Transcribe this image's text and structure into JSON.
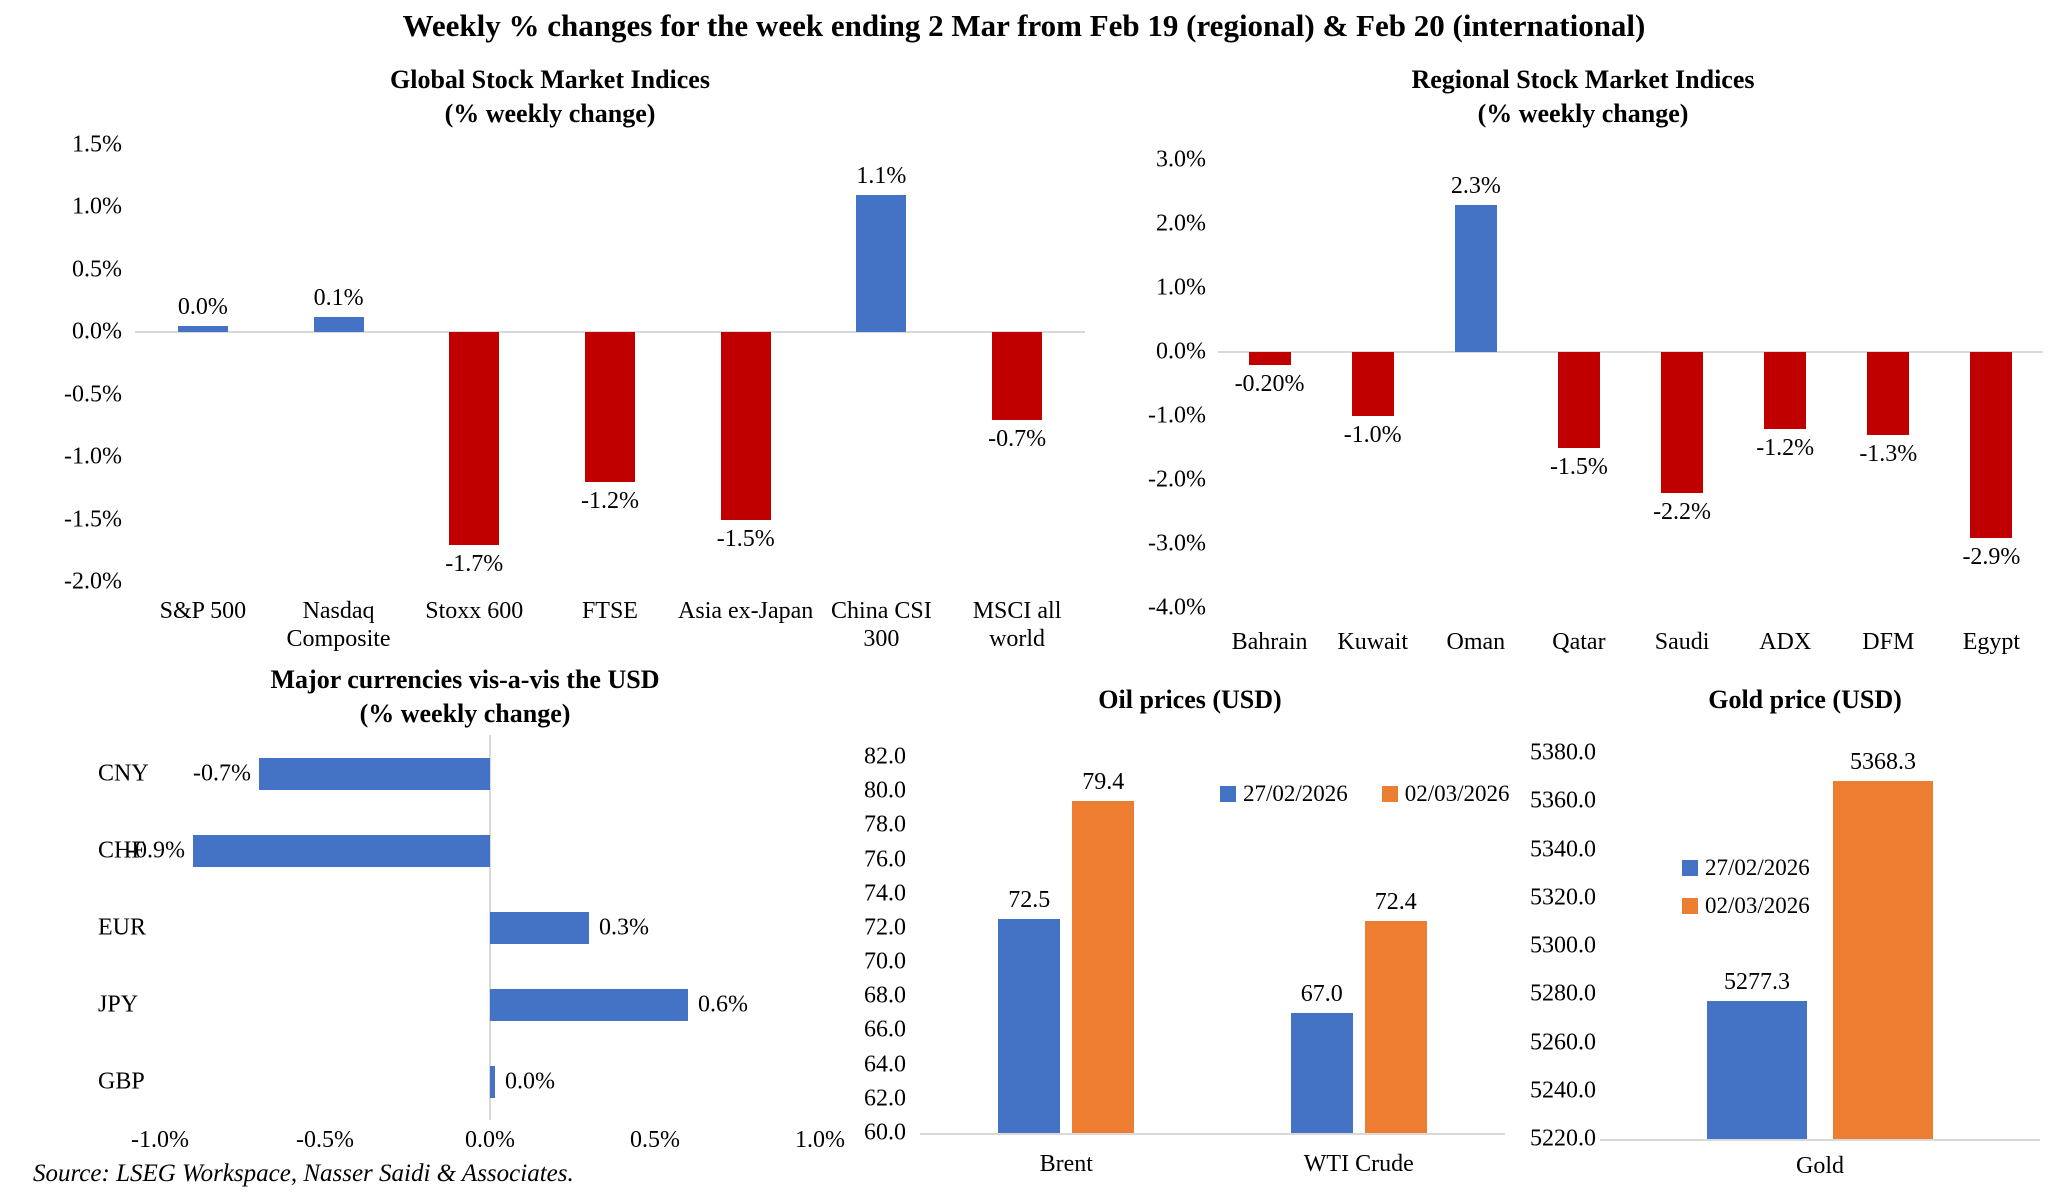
{
  "page": {
    "title": "Weekly % changes for the week ending 2 Mar from Feb 19 (regional) & Feb 20 (international)",
    "source": "Source: LSEG Workspace, Nasser Saidi & Associates."
  },
  "colors": {
    "blue": "#4472C4",
    "red": "#C00000",
    "orange": "#ED7D31",
    "axis_line": "#D9D9D9"
  },
  "chart_data": [
    {
      "id": "global",
      "type": "bar",
      "title": [
        "Global Stock Market Indices",
        "(% weekly change)"
      ],
      "axis": {
        "ymin": -2.0,
        "ymax": 1.5,
        "yticks": [
          "1.5%",
          "1.0%",
          "0.5%",
          "0.0%",
          "-0.5%",
          "-1.0%",
          "-1.5%",
          "-2.0%"
        ]
      },
      "grid": false,
      "points": [
        {
          "category": "S&P 500",
          "value": 0.05,
          "label": "0.0%",
          "color": "blue"
        },
        {
          "category": "Nasdaq Composite",
          "value": 0.12,
          "label": "0.1%",
          "color": "blue"
        },
        {
          "category": "Stoxx 600",
          "value": -1.7,
          "label": "-1.7%",
          "color": "red"
        },
        {
          "category": "FTSE",
          "value": -1.2,
          "label": "-1.2%",
          "color": "red"
        },
        {
          "category": "Asia ex-Japan",
          "value": -1.5,
          "label": "-1.5%",
          "color": "red"
        },
        {
          "category": "China CSI 300",
          "value": 1.1,
          "label": "1.1%",
          "color": "blue"
        },
        {
          "category": "MSCI all world",
          "value": -0.7,
          "label": "-0.7%",
          "color": "red"
        }
      ]
    },
    {
      "id": "regional",
      "type": "bar",
      "title": [
        "Regional Stock Market Indices",
        "(% weekly change)"
      ],
      "axis": {
        "ymin": -4.0,
        "ymax": 3.0,
        "yticks": [
          "3.0%",
          "2.0%",
          "1.0%",
          "0.0%",
          "-1.0%",
          "-2.0%",
          "-3.0%",
          "-4.0%"
        ]
      },
      "grid": false,
      "points": [
        {
          "category": "Bahrain",
          "value": -0.2,
          "label": "-0.20%",
          "color": "red"
        },
        {
          "category": "Kuwait",
          "value": -1.0,
          "label": "-1.0%",
          "color": "red"
        },
        {
          "category": "Oman",
          "value": 2.3,
          "label": "2.3%",
          "color": "blue"
        },
        {
          "category": "Qatar",
          "value": -1.5,
          "label": "-1.5%",
          "color": "red"
        },
        {
          "category": "Saudi",
          "value": -2.2,
          "label": "-2.2%",
          "color": "red"
        },
        {
          "category": "ADX",
          "value": -1.2,
          "label": "-1.2%",
          "color": "red"
        },
        {
          "category": "DFM",
          "value": -1.3,
          "label": "-1.3%",
          "color": "red"
        },
        {
          "category": "Egypt",
          "value": -2.9,
          "label": "-2.9%",
          "color": "red"
        }
      ]
    },
    {
      "id": "currencies",
      "type": "bar",
      "orientation": "horizontal",
      "title": [
        "Major currencies vis-a-vis the USD",
        "(% weekly change)"
      ],
      "axis": {
        "xmin": -1.0,
        "xmax": 1.0,
        "xticks": [
          "-1.0%",
          "-0.5%",
          "0.0%",
          "0.5%",
          "1.0%"
        ]
      },
      "grid": false,
      "points": [
        {
          "category": "CNY",
          "value": -0.7,
          "label": "-0.7%",
          "color": "blue"
        },
        {
          "category": "CHF",
          "value": -0.9,
          "label": "-0.9%",
          "color": "blue"
        },
        {
          "category": "EUR",
          "value": 0.3,
          "label": "0.3%",
          "color": "blue"
        },
        {
          "category": "JPY",
          "value": 0.6,
          "label": "0.6%",
          "color": "blue"
        },
        {
          "category": "GBP",
          "value": 0.015,
          "label": "0.0%",
          "color": "blue"
        }
      ]
    },
    {
      "id": "oil",
      "type": "bar",
      "grouped": true,
      "title": [
        "Oil prices (USD)"
      ],
      "axis": {
        "ymin": 60.0,
        "ymax": 82.0,
        "yticks": [
          "82.0",
          "80.0",
          "78.0",
          "76.0",
          "74.0",
          "72.0",
          "70.0",
          "68.0",
          "66.0",
          "64.0",
          "62.0",
          "60.0"
        ]
      },
      "grid": false,
      "categories": [
        "Brent",
        "WTI Crude"
      ],
      "series": [
        {
          "name": "27/02/2026",
          "color": "blue",
          "values": [
            72.5,
            67.0
          ],
          "labels": [
            "72.5",
            "67.0"
          ]
        },
        {
          "name": "02/03/2026",
          "color": "orange",
          "values": [
            79.4,
            72.4
          ],
          "labels": [
            "79.4",
            "72.4"
          ]
        }
      ],
      "legend": {
        "orientation": "horizontal"
      }
    },
    {
      "id": "gold",
      "type": "bar",
      "grouped": true,
      "title": [
        "Gold price (USD)"
      ],
      "axis": {
        "ymin": 5220.0,
        "ymax": 5380.0,
        "yticks": [
          "5380.0",
          "5360.0",
          "5340.0",
          "5320.0",
          "5300.0",
          "5280.0",
          "5260.0",
          "5240.0",
          "5220.0"
        ]
      },
      "grid": false,
      "categories": [
        "Gold"
      ],
      "series": [
        {
          "name": "27/02/2026",
          "color": "blue",
          "values": [
            5277.3
          ],
          "labels": [
            "5277.3"
          ]
        },
        {
          "name": "02/03/2026",
          "color": "orange",
          "values": [
            5368.3
          ],
          "labels": [
            "5368.3"
          ]
        }
      ],
      "legend": {
        "orientation": "vertical"
      }
    }
  ]
}
